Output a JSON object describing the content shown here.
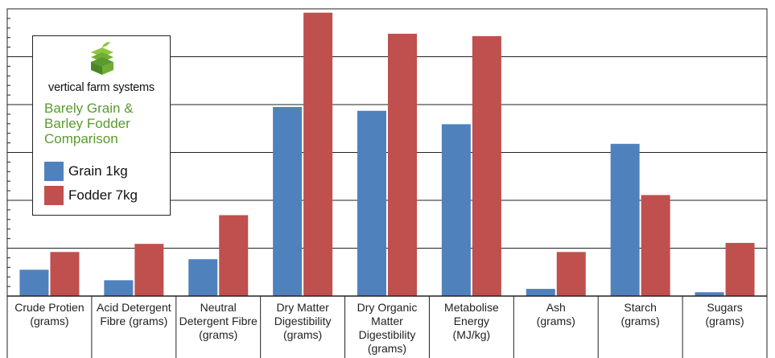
{
  "legend": {
    "brand": "vertical farm systems",
    "title_lines": [
      "Barely Grain &",
      "Barley Fodder",
      "Comparison"
    ],
    "logo_icon": "layered-farm-logo-icon"
  },
  "colors": {
    "grain": "#4f81bd",
    "fodder": "#c0504d",
    "logo_green": "#5a9a2f"
  },
  "chart_data": {
    "type": "bar",
    "categories": [
      [
        "Crude Protien",
        "(grams)"
      ],
      [
        "Acid Detergent",
        "Fibre (grams)"
      ],
      [
        "Neutral",
        "Detergent Fibre",
        "(grams)"
      ],
      [
        "Dry Matter",
        "Digestibility",
        "(grams)"
      ],
      [
        "Dry Organic",
        "Matter",
        "Digestibility",
        "(grams)"
      ],
      [
        "Metabolise",
        "Energy",
        "(MJ/kg)"
      ],
      [
        "Ash",
        "(grams)"
      ],
      [
        "Starch",
        "(grams)"
      ],
      [
        "Sugars",
        "(grams)"
      ]
    ],
    "series": [
      {
        "name": "Grain 1kg",
        "values": [
          0.55,
          0.33,
          0.77,
          3.95,
          3.87,
          3.59,
          0.15,
          3.18,
          0.08
        ]
      },
      {
        "name": "Fodder 7kg",
        "values": [
          0.92,
          1.09,
          1.69,
          5.92,
          5.48,
          5.43,
          0.92,
          2.11,
          1.11
        ]
      }
    ],
    "ylim": [
      0,
      6
    ],
    "grid": true,
    "legend_position": "top-left",
    "y_tick_labels_shown": false
  }
}
